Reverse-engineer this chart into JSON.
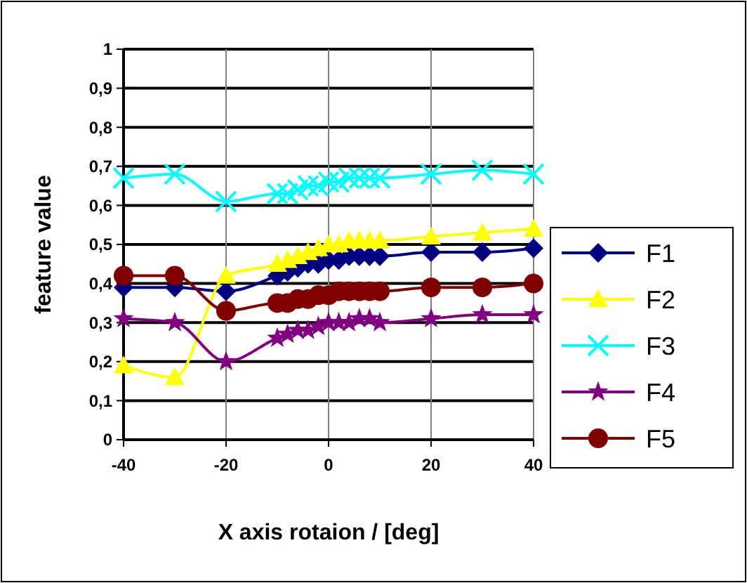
{
  "chart_data": {
    "type": "line",
    "xlabel": "X axis rotaion / [deg]",
    "ylabel": "feature value",
    "x": [
      -40,
      -30,
      -20,
      -10,
      -8,
      -6,
      -4,
      -2,
      0,
      2,
      4,
      6,
      8,
      10,
      20,
      30,
      40
    ],
    "xlim": [
      -40,
      40
    ],
    "xticks": [
      -40,
      -20,
      0,
      20,
      40
    ],
    "ylim": [
      0,
      1
    ],
    "yticks": [
      0,
      {
        "value": 0.1,
        "label": "0,1"
      },
      {
        "value": 0.2,
        "label": "0,2"
      },
      {
        "value": 0.3,
        "label": "0,3"
      },
      {
        "value": 0.4,
        "label": "0,4"
      },
      {
        "value": 0.5,
        "label": "0,5"
      },
      {
        "value": 0.6,
        "label": "0,6"
      },
      {
        "value": 0.7,
        "label": "0,7"
      },
      {
        "value": 0.8,
        "label": "0,8"
      },
      {
        "value": 0.9,
        "label": "0,9"
      },
      1
    ],
    "grid": true,
    "legend": "right",
    "series": [
      {
        "name": "F1",
        "color": "#000080",
        "marker": "diamond",
        "values": [
          0.39,
          0.39,
          0.38,
          0.42,
          0.43,
          0.44,
          0.45,
          0.45,
          0.46,
          0.46,
          0.47,
          0.47,
          0.47,
          0.47,
          0.48,
          0.48,
          0.49
        ]
      },
      {
        "name": "F2",
        "color": "#ffff00",
        "marker": "triangle",
        "values": [
          0.19,
          0.16,
          0.42,
          0.45,
          0.46,
          0.47,
          0.48,
          0.49,
          0.5,
          0.5,
          0.51,
          0.51,
          0.51,
          0.51,
          0.52,
          0.53,
          0.54
        ]
      },
      {
        "name": "F3",
        "color": "#00ffff",
        "marker": "cross",
        "values": [
          0.67,
          0.68,
          0.61,
          0.63,
          0.63,
          0.64,
          0.65,
          0.65,
          0.66,
          0.66,
          0.67,
          0.67,
          0.67,
          0.67,
          0.68,
          0.69,
          0.68
        ]
      },
      {
        "name": "F4",
        "color": "#800080",
        "marker": "star",
        "values": [
          0.31,
          0.3,
          0.2,
          0.26,
          0.27,
          0.28,
          0.28,
          0.29,
          0.3,
          0.3,
          0.3,
          0.31,
          0.31,
          0.3,
          0.31,
          0.32,
          0.32
        ]
      },
      {
        "name": "F5",
        "color": "#800000",
        "marker": "circle",
        "values": [
          0.42,
          0.42,
          0.33,
          0.35,
          0.35,
          0.36,
          0.36,
          0.37,
          0.37,
          0.38,
          0.38,
          0.38,
          0.38,
          0.38,
          0.39,
          0.39,
          0.4
        ]
      }
    ]
  }
}
